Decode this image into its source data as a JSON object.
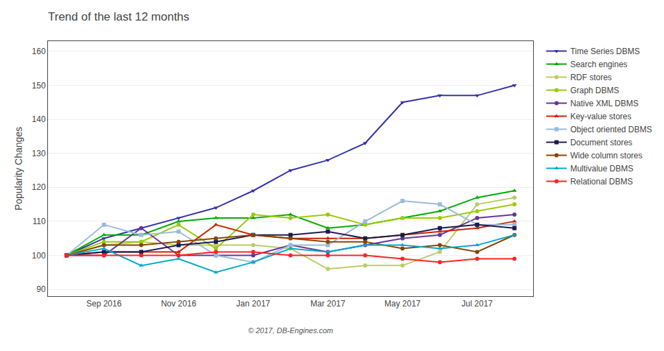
{
  "chart_data": {
    "type": "line",
    "title": "Trend of the last 12 months",
    "ylabel": "Popularity Changes",
    "annotations": [
      "© 2017, DB-Engines.com"
    ],
    "categories": [
      null,
      "Sep 2016",
      null,
      "Nov 2016",
      null,
      "Jan 2017",
      null,
      "Mar 2017",
      null,
      "May 2017",
      null,
      "Jul 2017",
      null
    ],
    "ylim": [
      88,
      163
    ],
    "yticks": [
      90,
      100,
      110,
      120,
      130,
      140,
      150,
      160
    ],
    "grid": true,
    "legend": "right",
    "series": [
      {
        "name": "Time Series DBMS",
        "color": "#3333aa",
        "marker": "triangle-down",
        "values": [
          100,
          105,
          108,
          111,
          114,
          119,
          125,
          128,
          133,
          145,
          147,
          147,
          150
        ]
      },
      {
        "name": "Search engines",
        "color": "#00aa00",
        "marker": "triangle-up",
        "values": [
          100,
          106,
          106,
          110,
          111,
          111,
          112,
          108,
          109,
          111,
          113,
          117,
          119
        ]
      },
      {
        "name": "RDF stores",
        "color": "#bbcc66",
        "marker": "circle",
        "values": [
          100,
          103,
          104,
          103,
          103,
          103,
          102,
          96,
          97,
          97,
          101,
          115,
          117
        ]
      },
      {
        "name": "Graph DBMS",
        "color": "#99cc00",
        "marker": "circle",
        "values": [
          100,
          104,
          104,
          109,
          102,
          112,
          111,
          112,
          109,
          111,
          111,
          113,
          115
        ]
      },
      {
        "name": "Native XML DBMS",
        "color": "#663399",
        "marker": "circle",
        "values": [
          100,
          100,
          108,
          100,
          100,
          100,
          103,
          101,
          103,
          105,
          106,
          111,
          112
        ]
      },
      {
        "name": "Key-value stores",
        "color": "#cc2200",
        "marker": "triangle-up",
        "values": [
          100,
          101,
          101,
          101,
          109,
          106,
          105,
          105,
          105,
          106,
          107,
          108,
          110
        ]
      },
      {
        "name": "Object oriented DBMS",
        "color": "#99bbdd",
        "marker": "square",
        "values": [
          100,
          109,
          106,
          107,
          100,
          98,
          103,
          103,
          110,
          116,
          115,
          109,
          109
        ]
      },
      {
        "name": "Document stores",
        "color": "#1a1a4e",
        "marker": "square",
        "values": [
          100,
          101,
          101,
          103,
          104,
          106,
          106,
          107,
          105,
          106,
          108,
          109,
          108
        ]
      },
      {
        "name": "Wide column stores",
        "color": "#884400",
        "marker": "circle",
        "values": [
          100,
          103,
          103,
          104,
          105,
          106,
          105,
          104,
          104,
          102,
          103,
          101,
          106
        ]
      },
      {
        "name": "Multivalue DBMS",
        "color": "#00aacc",
        "marker": "triangle-up",
        "values": [
          100,
          102,
          97,
          99,
          95,
          98,
          102,
          101,
          103,
          103,
          102,
          103,
          106
        ]
      },
      {
        "name": "Relational DBMS",
        "color": "#ff2222",
        "marker": "circle",
        "values": [
          100,
          100,
          100,
          100,
          101,
          101,
          100,
          100,
          100,
          99,
          98,
          99,
          99
        ]
      }
    ]
  }
}
